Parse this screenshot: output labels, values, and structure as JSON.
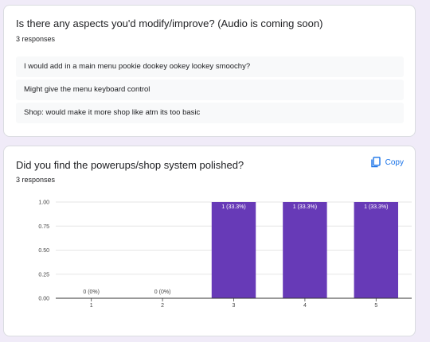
{
  "question1": {
    "title": "Is there any aspects you'd modify/improve? (Audio is coming soon)",
    "response_count": "3 responses",
    "responses": [
      "I would add in a main menu pookie dookey ookey lookey smoochy?",
      "Might give the menu keyboard control",
      "Shop: would make it more shop like atm its too basic"
    ]
  },
  "question2": {
    "title": "Did you find the powerups/shop system polished?",
    "response_count": "3 responses",
    "copy_label": "Copy",
    "copy_icon": "copy-icon"
  },
  "chart_data": {
    "type": "bar",
    "categories": [
      "1",
      "2",
      "3",
      "4",
      "5"
    ],
    "values": [
      0,
      0,
      1,
      1,
      1
    ],
    "data_labels": [
      "0 (0%)",
      "0 (0%)",
      "1 (33.3%)",
      "1 (33.3%)",
      "1 (33.3%)"
    ],
    "y_ticks": [
      "0.00",
      "0.25",
      "0.50",
      "0.75",
      "1.00"
    ],
    "ylim": [
      0,
      1
    ],
    "bar_color": "#673ab7",
    "grid": true
  }
}
